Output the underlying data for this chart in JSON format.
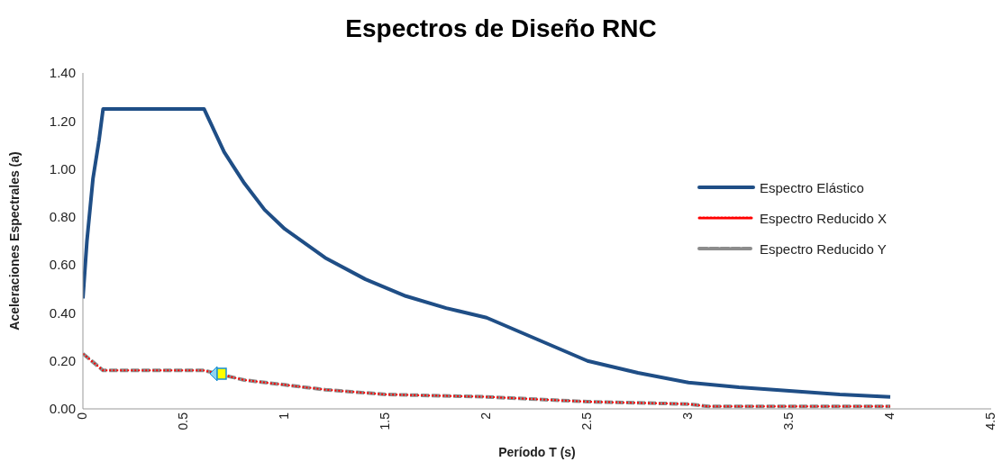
{
  "chart_data": {
    "type": "line",
    "title": "Espectros de Diseño RNC",
    "xlabel": "Período T (s)",
    "ylabel": "Aceleraciones Espectrales (a)",
    "xlim": [
      0,
      4.5
    ],
    "xticks": [
      0,
      0.5,
      1,
      1.5,
      2,
      2.5,
      3,
      3.5,
      4,
      4.5
    ],
    "ylim": [
      0,
      1.4
    ],
    "yticks": [
      {
        "value": 0,
        "label": "0.00"
      },
      {
        "value": 0.2,
        "label": "0.20"
      },
      {
        "value": 0.4,
        "label": "0.40"
      },
      {
        "value": 0.6,
        "label": "0.60"
      },
      {
        "value": 0.8,
        "label": "0.80"
      },
      {
        "value": 1.0,
        "label": "1.00"
      },
      {
        "value": 1.2,
        "label": "1.20"
      },
      {
        "value": 1.4,
        "label": "1.40"
      }
    ],
    "grid": false,
    "legend": "right",
    "marker": "none",
    "series": [
      {
        "name": "Espectro Elástico",
        "color": "#1f4e86",
        "line_style": "solid",
        "x": [
          0,
          0.02,
          0.05,
          0.08,
          0.1,
          0.6,
          0.7,
          0.8,
          0.9,
          1.0,
          1.2,
          1.4,
          1.6,
          1.8,
          2.0,
          2.25,
          2.5,
          2.75,
          3.0,
          3.25,
          3.5,
          3.75,
          4.0
        ],
        "values": [
          0.46,
          0.7,
          0.96,
          1.12,
          1.25,
          1.25,
          1.07,
          0.94,
          0.83,
          0.75,
          0.63,
          0.54,
          0.47,
          0.42,
          0.38,
          0.29,
          0.2,
          0.15,
          0.11,
          0.09,
          0.075,
          0.06,
          0.05
        ]
      },
      {
        "name": "Espectro Reducido Y",
        "color": "#8c8c8c",
        "line_style": "dashed",
        "x": [
          0,
          0.1,
          0.6,
          0.8,
          1.0,
          1.2,
          1.5,
          2.0,
          2.5,
          3.0,
          3.1,
          3.5,
          4.0
        ],
        "values": [
          0.23,
          0.16,
          0.16,
          0.12,
          0.1,
          0.08,
          0.06,
          0.05,
          0.03,
          0.02,
          0.01,
          0.01,
          0.01
        ]
      },
      {
        "name": "Espectro Reducido X",
        "color": "#ff0000",
        "line_style": "dotted",
        "x": [
          0,
          0.1,
          0.6,
          0.8,
          1.0,
          1.2,
          1.5,
          2.0,
          2.5,
          3.0,
          3.1,
          3.5,
          4.0
        ],
        "values": [
          0.23,
          0.16,
          0.16,
          0.12,
          0.1,
          0.08,
          0.06,
          0.05,
          0.03,
          0.02,
          0.01,
          0.01,
          0.01
        ]
      }
    ]
  }
}
